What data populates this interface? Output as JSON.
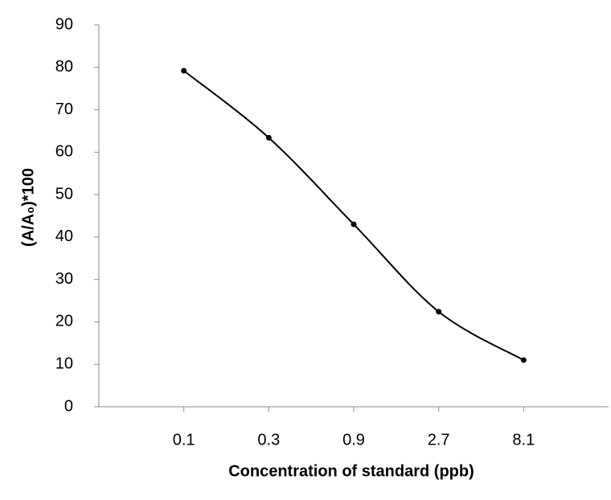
{
  "chart_data": {
    "type": "line",
    "categories": [
      "0.1",
      "0.3",
      "0.9",
      "2.7",
      "8.1"
    ],
    "values": [
      79.2,
      63.4,
      43,
      22.4,
      11
    ],
    "color": "#000000",
    "xlabel": "Concentration of standard (ppb)",
    "ylabel": "(A/A₀)*100",
    "ylim": [
      0,
      90
    ],
    "yticks": [
      0,
      10,
      20,
      30,
      40,
      50,
      60,
      70,
      80,
      90
    ],
    "grid": false,
    "smooth": true
  }
}
